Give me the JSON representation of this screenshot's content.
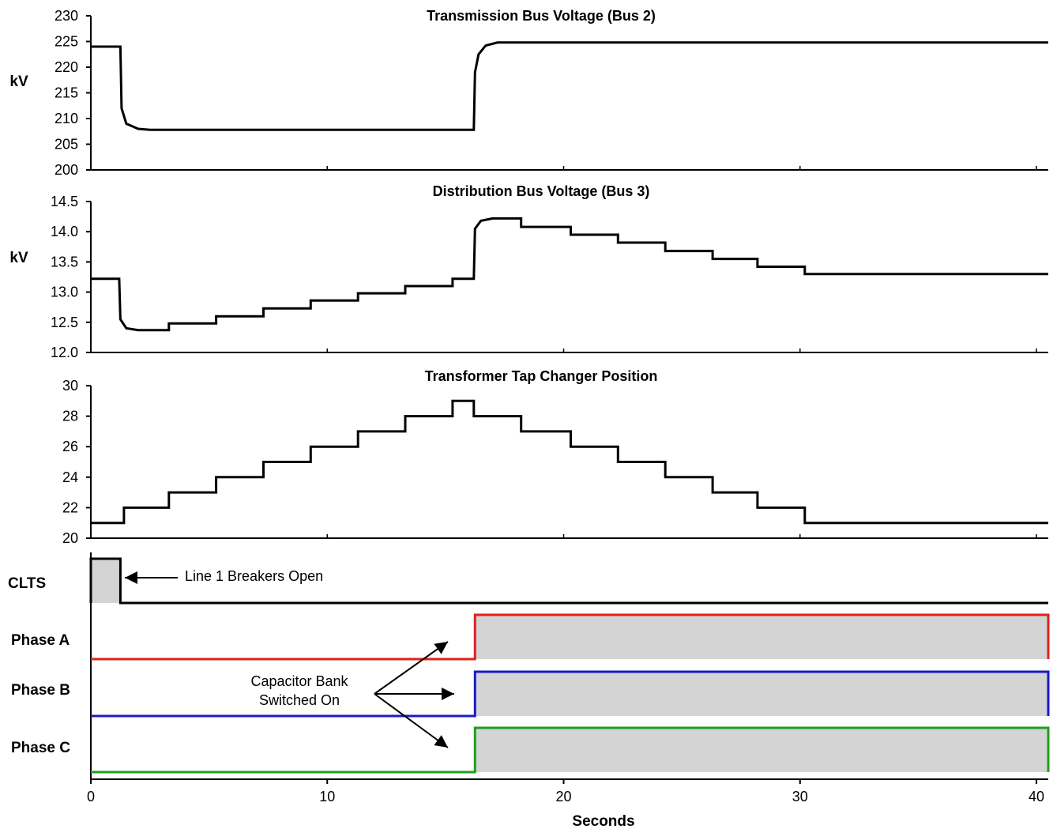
{
  "chart_data": [
    {
      "type": "line",
      "title": "Transmission Bus Voltage (Bus 2)",
      "ylabel": "kV",
      "ylim": [
        200,
        230
      ],
      "yticks": [
        "200",
        "205",
        "210",
        "215",
        "220",
        "225",
        "230"
      ],
      "series": [
        {
          "x": [
            0,
            1.25,
            1.3,
            1.5,
            2,
            2.5,
            16.2,
            16.25,
            16.4,
            16.7,
            17.2,
            40.5
          ],
          "values": [
            224,
            224,
            212,
            209,
            208,
            207.8,
            207.8,
            219,
            222.5,
            224.2,
            224.8,
            224.8
          ]
        }
      ]
    },
    {
      "type": "line",
      "title": "Distribution Bus Voltage (Bus 3)",
      "ylabel": "kV",
      "ylim": [
        12.0,
        14.5
      ],
      "yticks": [
        "12.0",
        "12.5",
        "13.0",
        "13.5",
        "14.0",
        "14.5"
      ],
      "series": [
        {
          "x": [
            0,
            1.2,
            1.25,
            1.5,
            2,
            3.3,
            3.3,
            5.3,
            5.3,
            7.3,
            7.3,
            9.3,
            9.3,
            11.3,
            11.3,
            13.3,
            13.3,
            15.3,
            15.3,
            16.2,
            16.25,
            16.5,
            17,
            18.2,
            18.2,
            20.3,
            20.3,
            22.3,
            22.3,
            24.3,
            24.3,
            26.3,
            26.3,
            28.2,
            28.2,
            30.2,
            30.2,
            40.5
          ],
          "values": [
            13.22,
            13.22,
            12.55,
            12.4,
            12.37,
            12.37,
            12.48,
            12.48,
            12.6,
            12.6,
            12.73,
            12.73,
            12.86,
            12.86,
            12.98,
            12.98,
            13.1,
            13.1,
            13.22,
            13.22,
            14.05,
            14.18,
            14.22,
            14.22,
            14.08,
            14.08,
            13.95,
            13.95,
            13.82,
            13.82,
            13.68,
            13.68,
            13.55,
            13.55,
            13.42,
            13.42,
            13.3,
            13.3
          ]
        }
      ]
    },
    {
      "type": "line",
      "title": "Transformer Tap Changer Position",
      "ylim": [
        20,
        30
      ],
      "yticks": [
        "20",
        "22",
        "24",
        "26",
        "28",
        "30"
      ],
      "series": [
        {
          "x": [
            0,
            1.4,
            1.4,
            3.3,
            3.3,
            5.3,
            5.3,
            7.3,
            7.3,
            9.3,
            9.3,
            11.3,
            11.3,
            13.3,
            13.3,
            15.3,
            15.3,
            16.2,
            16.2,
            18.2,
            18.2,
            20.3,
            20.3,
            22.3,
            22.3,
            24.3,
            24.3,
            26.3,
            26.3,
            28.2,
            28.2,
            30.2,
            30.2,
            40.5
          ],
          "values": [
            21,
            21,
            22,
            22,
            23,
            23,
            24,
            24,
            25,
            25,
            26,
            26,
            27,
            27,
            28,
            28,
            29,
            29,
            28,
            28,
            27,
            27,
            26,
            26,
            25,
            25,
            24,
            24,
            23,
            23,
            22,
            22,
            21,
            21
          ]
        }
      ]
    },
    {
      "type": "line",
      "name": "digital signals",
      "xlabel": "Seconds",
      "xlim": [
        0,
        40.5
      ],
      "xticks": [
        "0",
        "10",
        "20",
        "30",
        "40"
      ],
      "series": [
        {
          "name": "CLTS",
          "color": "#000000",
          "on": [
            0,
            1.25
          ]
        },
        {
          "name": "Phase A",
          "color": "#e02020",
          "on": [
            16.25,
            40.5
          ]
        },
        {
          "name": "Phase B",
          "color": "#1a1acc",
          "on": [
            16.25,
            40.5
          ]
        },
        {
          "name": "Phase C",
          "color": "#1ea01e",
          "on": [
            16.25,
            40.5
          ]
        }
      ],
      "annotations": [
        {
          "text": "Line 1 Breakers Open",
          "lines": [
            "Line 1 Breakers Open"
          ]
        },
        {
          "text": "Capacitor Bank Switched On",
          "lines": [
            "Capacitor Bank",
            "Switched On"
          ]
        }
      ]
    }
  ]
}
